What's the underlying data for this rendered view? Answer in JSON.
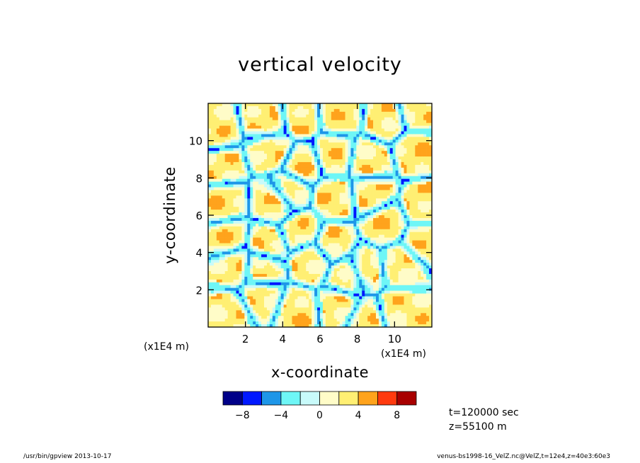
{
  "chart_data": {
    "type": "heatmap",
    "title": "vertical velocity",
    "xlabel": "x-coordinate",
    "ylabel": "y-coordinate",
    "x_unit": "(x1E4 m)",
    "y_unit": "(x1E4 m)",
    "xlim": [
      0,
      12
    ],
    "ylim": [
      0,
      12
    ],
    "x_ticks": [
      2,
      4,
      6,
      8,
      10
    ],
    "y_ticks": [
      2,
      4,
      6,
      8,
      10
    ],
    "x_tick_labels": [
      "2",
      "4",
      "6",
      "8",
      "10"
    ],
    "y_tick_labels": [
      "2",
      "4",
      "6",
      "8",
      "10"
    ],
    "colorbar": {
      "colors": [
        "#000088",
        "#0018ff",
        "#1e96e8",
        "#6ef6f6",
        "#c8fafa",
        "#fffcc8",
        "#ffef73",
        "#ffa31c",
        "#ff3a0e",
        "#a80000"
      ],
      "ticks": [
        -8,
        -4,
        0,
        4,
        8
      ],
      "tick_labels": [
        "−8",
        "−4",
        "0",
        "4",
        "8"
      ]
    },
    "field_description": "cellular convection pattern; warm (positive) cells bounded by cyan/blue (negative) downdraft lanes"
  },
  "annotations": {
    "time": "t=120000 sec",
    "height": "z=55100 m"
  },
  "footer": {
    "left": "/usr/bin/gpview   2013-10-17",
    "right": "venus-bs1998-16_VelZ.nc@VelZ,t=12e4,z=40e3:60e3"
  }
}
